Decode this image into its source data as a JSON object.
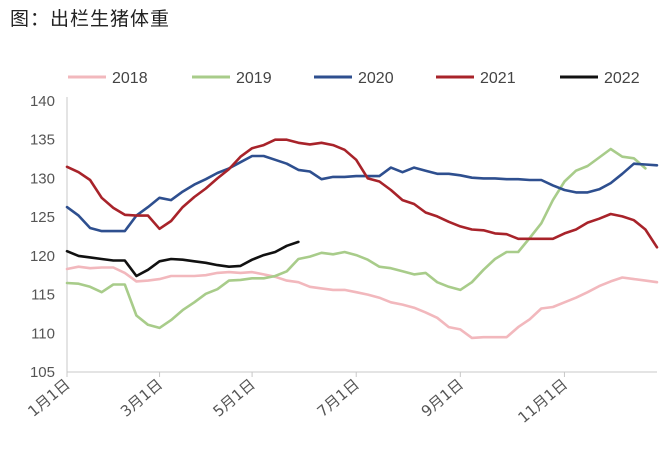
{
  "title": "图：出栏生猪体重",
  "chart_data": {
    "type": "line",
    "title": "图：出栏生猪体重",
    "xlabel": "",
    "ylabel": "",
    "ylim": [
      105,
      140
    ],
    "yticks": [
      105,
      110,
      115,
      120,
      125,
      130,
      135,
      140
    ],
    "xticks": [
      "1月1日",
      "3月1日",
      "5月1日",
      "7月1日",
      "9月1日",
      "11月1日"
    ],
    "x_weeks": [
      1,
      9,
      17,
      26,
      35,
      44
    ],
    "grid": false,
    "legend_position": "top",
    "series": [
      {
        "name": "2018",
        "color": "#f2b8bd",
        "points": [
          [
            1,
            118.3
          ],
          [
            2,
            118.6
          ],
          [
            3,
            118.4
          ],
          [
            4,
            118.5
          ],
          [
            5,
            118.5
          ],
          [
            6,
            117.8
          ],
          [
            7,
            116.7
          ],
          [
            8,
            116.8
          ],
          [
            9,
            117.0
          ],
          [
            10,
            117.4
          ],
          [
            11,
            117.4
          ],
          [
            12,
            117.4
          ],
          [
            13,
            117.5
          ],
          [
            14,
            117.8
          ],
          [
            15,
            117.9
          ],
          [
            16,
            117.8
          ],
          [
            17,
            117.9
          ],
          [
            18,
            117.6
          ],
          [
            19,
            117.3
          ],
          [
            20,
            116.8
          ],
          [
            21,
            116.6
          ],
          [
            22,
            116.0
          ],
          [
            23,
            115.8
          ],
          [
            24,
            115.6
          ],
          [
            25,
            115.6
          ],
          [
            26,
            115.3
          ],
          [
            27,
            115.0
          ],
          [
            28,
            114.6
          ],
          [
            29,
            114.0
          ],
          [
            30,
            113.7
          ],
          [
            31,
            113.3
          ],
          [
            32,
            112.7
          ],
          [
            33,
            112.0
          ],
          [
            34,
            110.8
          ],
          [
            35,
            110.5
          ],
          [
            36,
            109.4
          ],
          [
            37,
            109.5
          ],
          [
            38,
            109.5
          ],
          [
            39,
            109.5
          ],
          [
            40,
            110.8
          ],
          [
            41,
            111.8
          ],
          [
            42,
            113.2
          ],
          [
            43,
            113.4
          ],
          [
            44,
            114.0
          ],
          [
            45,
            114.6
          ],
          [
            46,
            115.3
          ],
          [
            47,
            116.1
          ],
          [
            48,
            116.7
          ],
          [
            49,
            117.2
          ],
          [
            50,
            117.0
          ],
          [
            51,
            116.8
          ],
          [
            52,
            116.6
          ]
        ]
      },
      {
        "name": "2019",
        "color": "#a8cc8a",
        "points": [
          [
            1,
            116.5
          ],
          [
            2,
            116.4
          ],
          [
            3,
            116.0
          ],
          [
            4,
            115.3
          ],
          [
            5,
            116.3
          ],
          [
            6,
            116.3
          ],
          [
            7,
            112.3
          ],
          [
            8,
            111.1
          ],
          [
            9,
            110.7
          ],
          [
            10,
            111.7
          ],
          [
            11,
            113.0
          ],
          [
            12,
            114.0
          ],
          [
            13,
            115.1
          ],
          [
            14,
            115.7
          ],
          [
            15,
            116.8
          ],
          [
            16,
            116.9
          ],
          [
            17,
            117.1
          ],
          [
            18,
            117.1
          ],
          [
            19,
            117.4
          ],
          [
            20,
            118.0
          ],
          [
            21,
            119.6
          ],
          [
            22,
            119.9
          ],
          [
            23,
            120.4
          ],
          [
            24,
            120.2
          ],
          [
            25,
            120.5
          ],
          [
            26,
            120.1
          ],
          [
            27,
            119.5
          ],
          [
            28,
            118.6
          ],
          [
            29,
            118.4
          ],
          [
            30,
            118.0
          ],
          [
            31,
            117.6
          ],
          [
            32,
            117.8
          ],
          [
            33,
            116.6
          ],
          [
            34,
            116.0
          ],
          [
            35,
            115.6
          ],
          [
            36,
            116.6
          ],
          [
            37,
            118.2
          ],
          [
            38,
            119.6
          ],
          [
            39,
            120.5
          ],
          [
            40,
            120.5
          ],
          [
            41,
            122.3
          ],
          [
            42,
            124.2
          ],
          [
            43,
            127.2
          ],
          [
            44,
            129.6
          ],
          [
            45,
            131.0
          ],
          [
            46,
            131.6
          ],
          [
            47,
            132.7
          ],
          [
            48,
            133.8
          ],
          [
            49,
            132.8
          ],
          [
            50,
            132.6
          ],
          [
            51,
            131.3
          ]
        ]
      },
      {
        "name": "2020",
        "color": "#2e4f8f",
        "points": [
          [
            1,
            126.3
          ],
          [
            2,
            125.2
          ],
          [
            3,
            123.6
          ],
          [
            4,
            123.2
          ],
          [
            5,
            123.2
          ],
          [
            6,
            123.2
          ],
          [
            7,
            125.2
          ],
          [
            8,
            126.3
          ],
          [
            9,
            127.5
          ],
          [
            10,
            127.2
          ],
          [
            11,
            128.3
          ],
          [
            12,
            129.2
          ],
          [
            13,
            129.9
          ],
          [
            14,
            130.7
          ],
          [
            15,
            131.3
          ],
          [
            16,
            132.1
          ],
          [
            17,
            132.9
          ],
          [
            18,
            132.9
          ],
          [
            19,
            132.4
          ],
          [
            20,
            131.9
          ],
          [
            21,
            131.1
          ],
          [
            22,
            130.9
          ],
          [
            23,
            129.9
          ],
          [
            24,
            130.2
          ],
          [
            25,
            130.2
          ],
          [
            26,
            130.3
          ],
          [
            27,
            130.3
          ],
          [
            28,
            130.3
          ],
          [
            29,
            131.4
          ],
          [
            30,
            130.8
          ],
          [
            31,
            131.4
          ],
          [
            32,
            131.0
          ],
          [
            33,
            130.6
          ],
          [
            34,
            130.6
          ],
          [
            35,
            130.4
          ],
          [
            36,
            130.1
          ],
          [
            37,
            130.0
          ],
          [
            38,
            130.0
          ],
          [
            39,
            129.9
          ],
          [
            40,
            129.9
          ],
          [
            41,
            129.8
          ],
          [
            42,
            129.8
          ],
          [
            43,
            129.1
          ],
          [
            44,
            128.5
          ],
          [
            45,
            128.2
          ],
          [
            46,
            128.2
          ],
          [
            47,
            128.6
          ],
          [
            48,
            129.4
          ],
          [
            49,
            130.6
          ],
          [
            50,
            131.9
          ],
          [
            51,
            131.8
          ],
          [
            52,
            131.7
          ]
        ]
      },
      {
        "name": "2021",
        "color": "#a8232a",
        "points": [
          [
            1,
            131.5
          ],
          [
            2,
            130.8
          ],
          [
            3,
            129.8
          ],
          [
            4,
            127.5
          ],
          [
            5,
            126.2
          ],
          [
            6,
            125.3
          ],
          [
            7,
            125.2
          ],
          [
            8,
            125.2
          ],
          [
            9,
            123.5
          ],
          [
            10,
            124.5
          ],
          [
            11,
            126.3
          ],
          [
            12,
            127.6
          ],
          [
            13,
            128.7
          ],
          [
            14,
            130.0
          ],
          [
            15,
            131.2
          ],
          [
            16,
            132.8
          ],
          [
            17,
            133.9
          ],
          [
            18,
            134.3
          ],
          [
            19,
            135.0
          ],
          [
            20,
            135.0
          ],
          [
            21,
            134.6
          ],
          [
            22,
            134.4
          ],
          [
            23,
            134.6
          ],
          [
            24,
            134.3
          ],
          [
            25,
            133.7
          ],
          [
            26,
            132.4
          ],
          [
            27,
            130.0
          ],
          [
            28,
            129.6
          ],
          [
            29,
            128.5
          ],
          [
            30,
            127.2
          ],
          [
            31,
            126.7
          ],
          [
            32,
            125.6
          ],
          [
            33,
            125.1
          ],
          [
            34,
            124.4
          ],
          [
            35,
            123.8
          ],
          [
            36,
            123.4
          ],
          [
            37,
            123.3
          ],
          [
            38,
            122.9
          ],
          [
            39,
            122.8
          ],
          [
            40,
            122.2
          ],
          [
            41,
            122.2
          ],
          [
            42,
            122.2
          ],
          [
            43,
            122.2
          ],
          [
            44,
            122.9
          ],
          [
            45,
            123.4
          ],
          [
            46,
            124.3
          ],
          [
            47,
            124.8
          ],
          [
            48,
            125.4
          ],
          [
            49,
            125.1
          ],
          [
            50,
            124.6
          ],
          [
            51,
            123.4
          ],
          [
            52,
            121.1
          ]
        ]
      },
      {
        "name": "2022",
        "color": "#111111",
        "points": [
          [
            1,
            120.6
          ],
          [
            2,
            120.0
          ],
          [
            3,
            119.8
          ],
          [
            4,
            119.6
          ],
          [
            5,
            119.4
          ],
          [
            6,
            119.4
          ],
          [
            7,
            117.4
          ],
          [
            8,
            118.2
          ],
          [
            9,
            119.3
          ],
          [
            10,
            119.6
          ],
          [
            11,
            119.5
          ],
          [
            12,
            119.3
          ],
          [
            13,
            119.1
          ],
          [
            14,
            118.8
          ],
          [
            15,
            118.6
          ],
          [
            16,
            118.7
          ],
          [
            17,
            119.5
          ],
          [
            18,
            120.1
          ],
          [
            19,
            120.5
          ],
          [
            20,
            121.3
          ],
          [
            21,
            121.8
          ]
        ]
      }
    ]
  }
}
